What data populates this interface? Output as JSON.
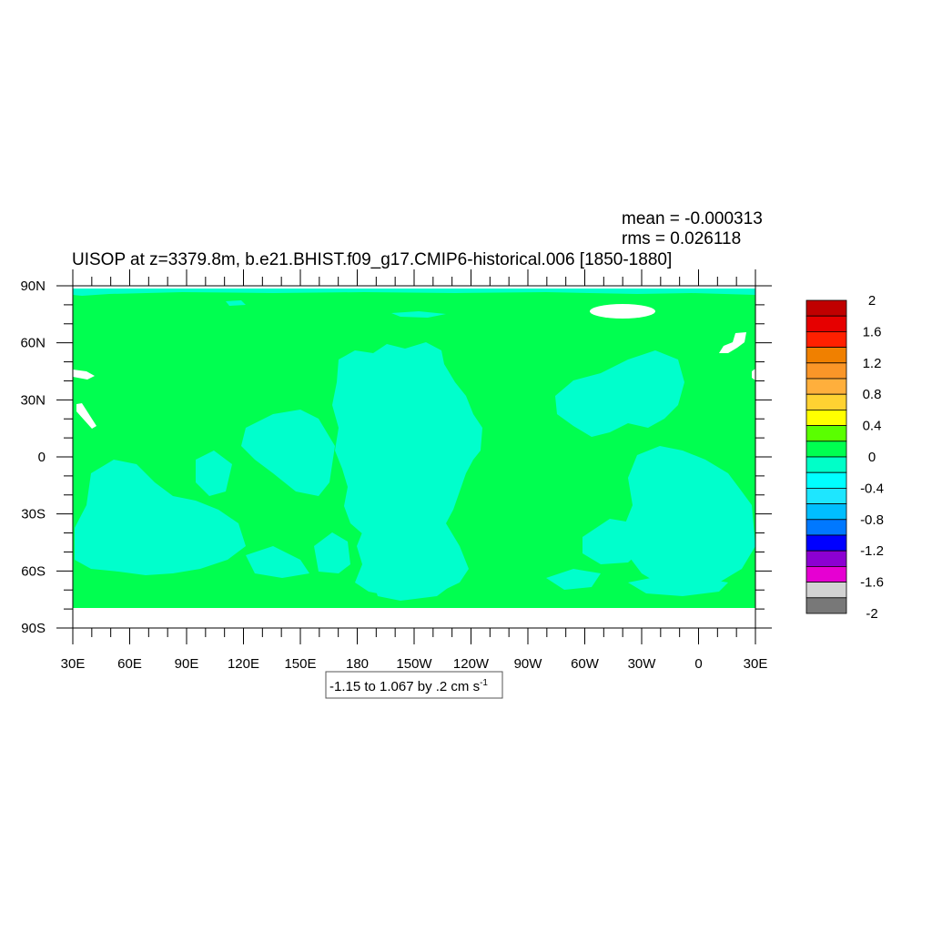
{
  "chart_data": {
    "type": "heatmap",
    "title": "UISOP at z=3379.8m, b.e21.BHIST.f09_g17.CMIP6-historical.006 [1850-1880]",
    "stats": {
      "mean": "mean = -0.000313",
      "rms": "rms = 0.026118"
    },
    "subtitle_box": {
      "text": "-1.15 to 1.067 by .2 cm s",
      "superscript": "-1"
    },
    "x_tick_labels": [
      "30E",
      "60E",
      "90E",
      "120E",
      "150E",
      "180",
      "150W",
      "120W",
      "90W",
      "60W",
      "30W",
      "0",
      "30E"
    ],
    "y_tick_labels": [
      "90N",
      "60N",
      "30N",
      "0",
      "30S",
      "60S",
      "90S"
    ],
    "xlim": [
      30,
      390
    ],
    "ylim": [
      -90,
      90
    ],
    "data_lat_range": [
      -79,
      87
    ],
    "dominant_level_colors": {
      "0 to 0.2": "#00FF50",
      "-0.2 to 0": "#00FFCC"
    },
    "colorbar": {
      "levels": [
        -2,
        -1.8,
        -1.6,
        -1.4,
        -1.2,
        -1,
        -0.8,
        -0.6,
        -0.4,
        -0.2,
        0,
        0.2,
        0.4,
        0.6,
        0.8,
        1,
        1.2,
        1.4,
        1.6,
        1.8,
        2
      ],
      "tick_labels": [
        "2",
        "1.6",
        "1.2",
        "0.8",
        "0.4",
        "0",
        "-0.4",
        "-0.8",
        "-1.2",
        "-1.6",
        "-2"
      ],
      "colors_top_to_bottom": [
        "#C00000",
        "#E60000",
        "#FF2000",
        "#F08000",
        "#FA9628",
        "#FFAF3C",
        "#FFD232",
        "#FFFF00",
        "#5AFF00",
        "#00FF50",
        "#00FFC8",
        "#00FFFF",
        "#1EE6FF",
        "#00BEFF",
        "#0078FF",
        "#0000FF",
        "#8C00D2",
        "#E600D2",
        "#D2D2D2",
        "#787878"
      ]
    }
  }
}
